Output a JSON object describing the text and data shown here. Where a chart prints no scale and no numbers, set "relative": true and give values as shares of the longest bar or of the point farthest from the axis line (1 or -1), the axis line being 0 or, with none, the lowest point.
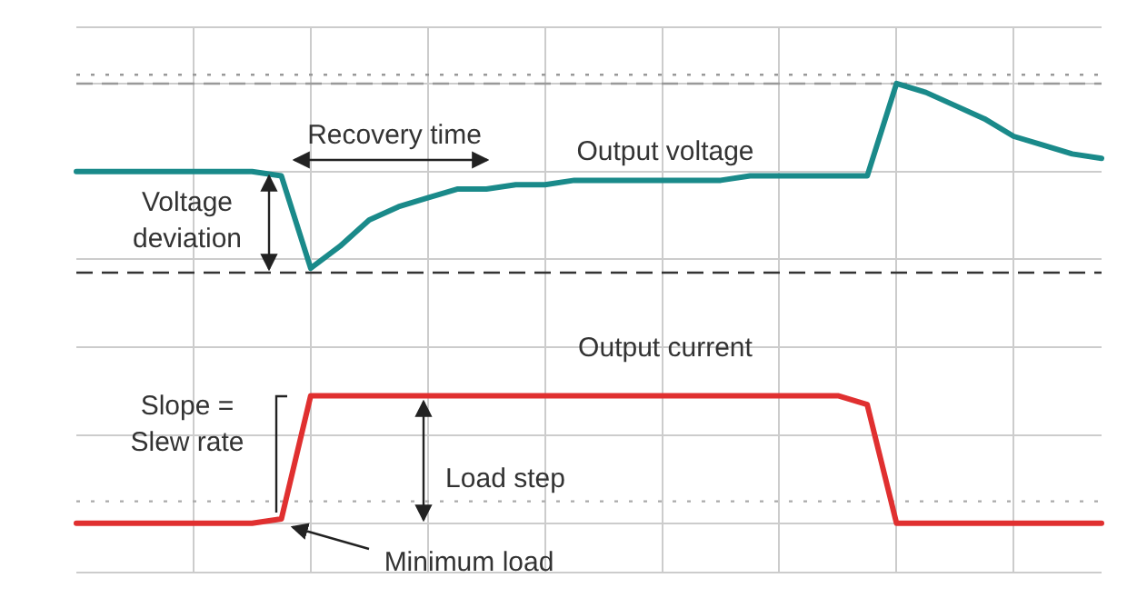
{
  "chart_data": {
    "type": "line",
    "relative": true,
    "categories": [
      null,
      null,
      null,
      null,
      null,
      null,
      null,
      null,
      null,
      null,
      null,
      null,
      null,
      null,
      null,
      null,
      null,
      null,
      null,
      null,
      null,
      null,
      null,
      null,
      null,
      null,
      null,
      null,
      null,
      null,
      null,
      null,
      null,
      null,
      null,
      null
    ],
    "series": [
      {
        "name": "Output voltage",
        "color": "#1a8a8a",
        "values": [
          0.8,
          0.8,
          0.8,
          0.8,
          0.8,
          0.8,
          0.8,
          0.79,
          0.58,
          0.63,
          0.69,
          0.72,
          0.74,
          0.76,
          0.76,
          0.77,
          0.77,
          0.78,
          0.78,
          0.78,
          0.78,
          0.78,
          0.78,
          0.79,
          0.79,
          0.79,
          0.79,
          0.79,
          1.0,
          0.98,
          0.95,
          0.92,
          0.88,
          0.86,
          0.84,
          0.83
        ]
      },
      {
        "name": "Output current",
        "color": "#e03030",
        "values": [
          0,
          0,
          0,
          0,
          0,
          0,
          0,
          0.01,
          0.29,
          0.29,
          0.29,
          0.29,
          0.29,
          0.29,
          0.29,
          0.29,
          0.29,
          0.29,
          0.29,
          0.29,
          0.29,
          0.29,
          0.29,
          0.29,
          0.29,
          0.29,
          0.29,
          0.27,
          0,
          0,
          0,
          0,
          0,
          0,
          0,
          0
        ]
      }
    ],
    "ref_lines": [
      {
        "axis": "y",
        "value": 1.02,
        "line_style": "dotted",
        "color": "#999999"
      },
      {
        "axis": "y",
        "value": 1.0,
        "line_style": "dashed",
        "color": "#999999"
      },
      {
        "axis": "y",
        "value": 0.57,
        "line_style": "dashed",
        "color": "#333333"
      },
      {
        "axis": "y",
        "value": 0.05,
        "line_style": "dotted",
        "color": "#aaaaaa"
      }
    ],
    "annotations": [
      "Recovery time",
      "Voltage\ndeviation",
      "Slope =\nSlew rate",
      "Load step",
      "Minimum load"
    ],
    "grid": true,
    "legend": false,
    "marker": "none"
  }
}
